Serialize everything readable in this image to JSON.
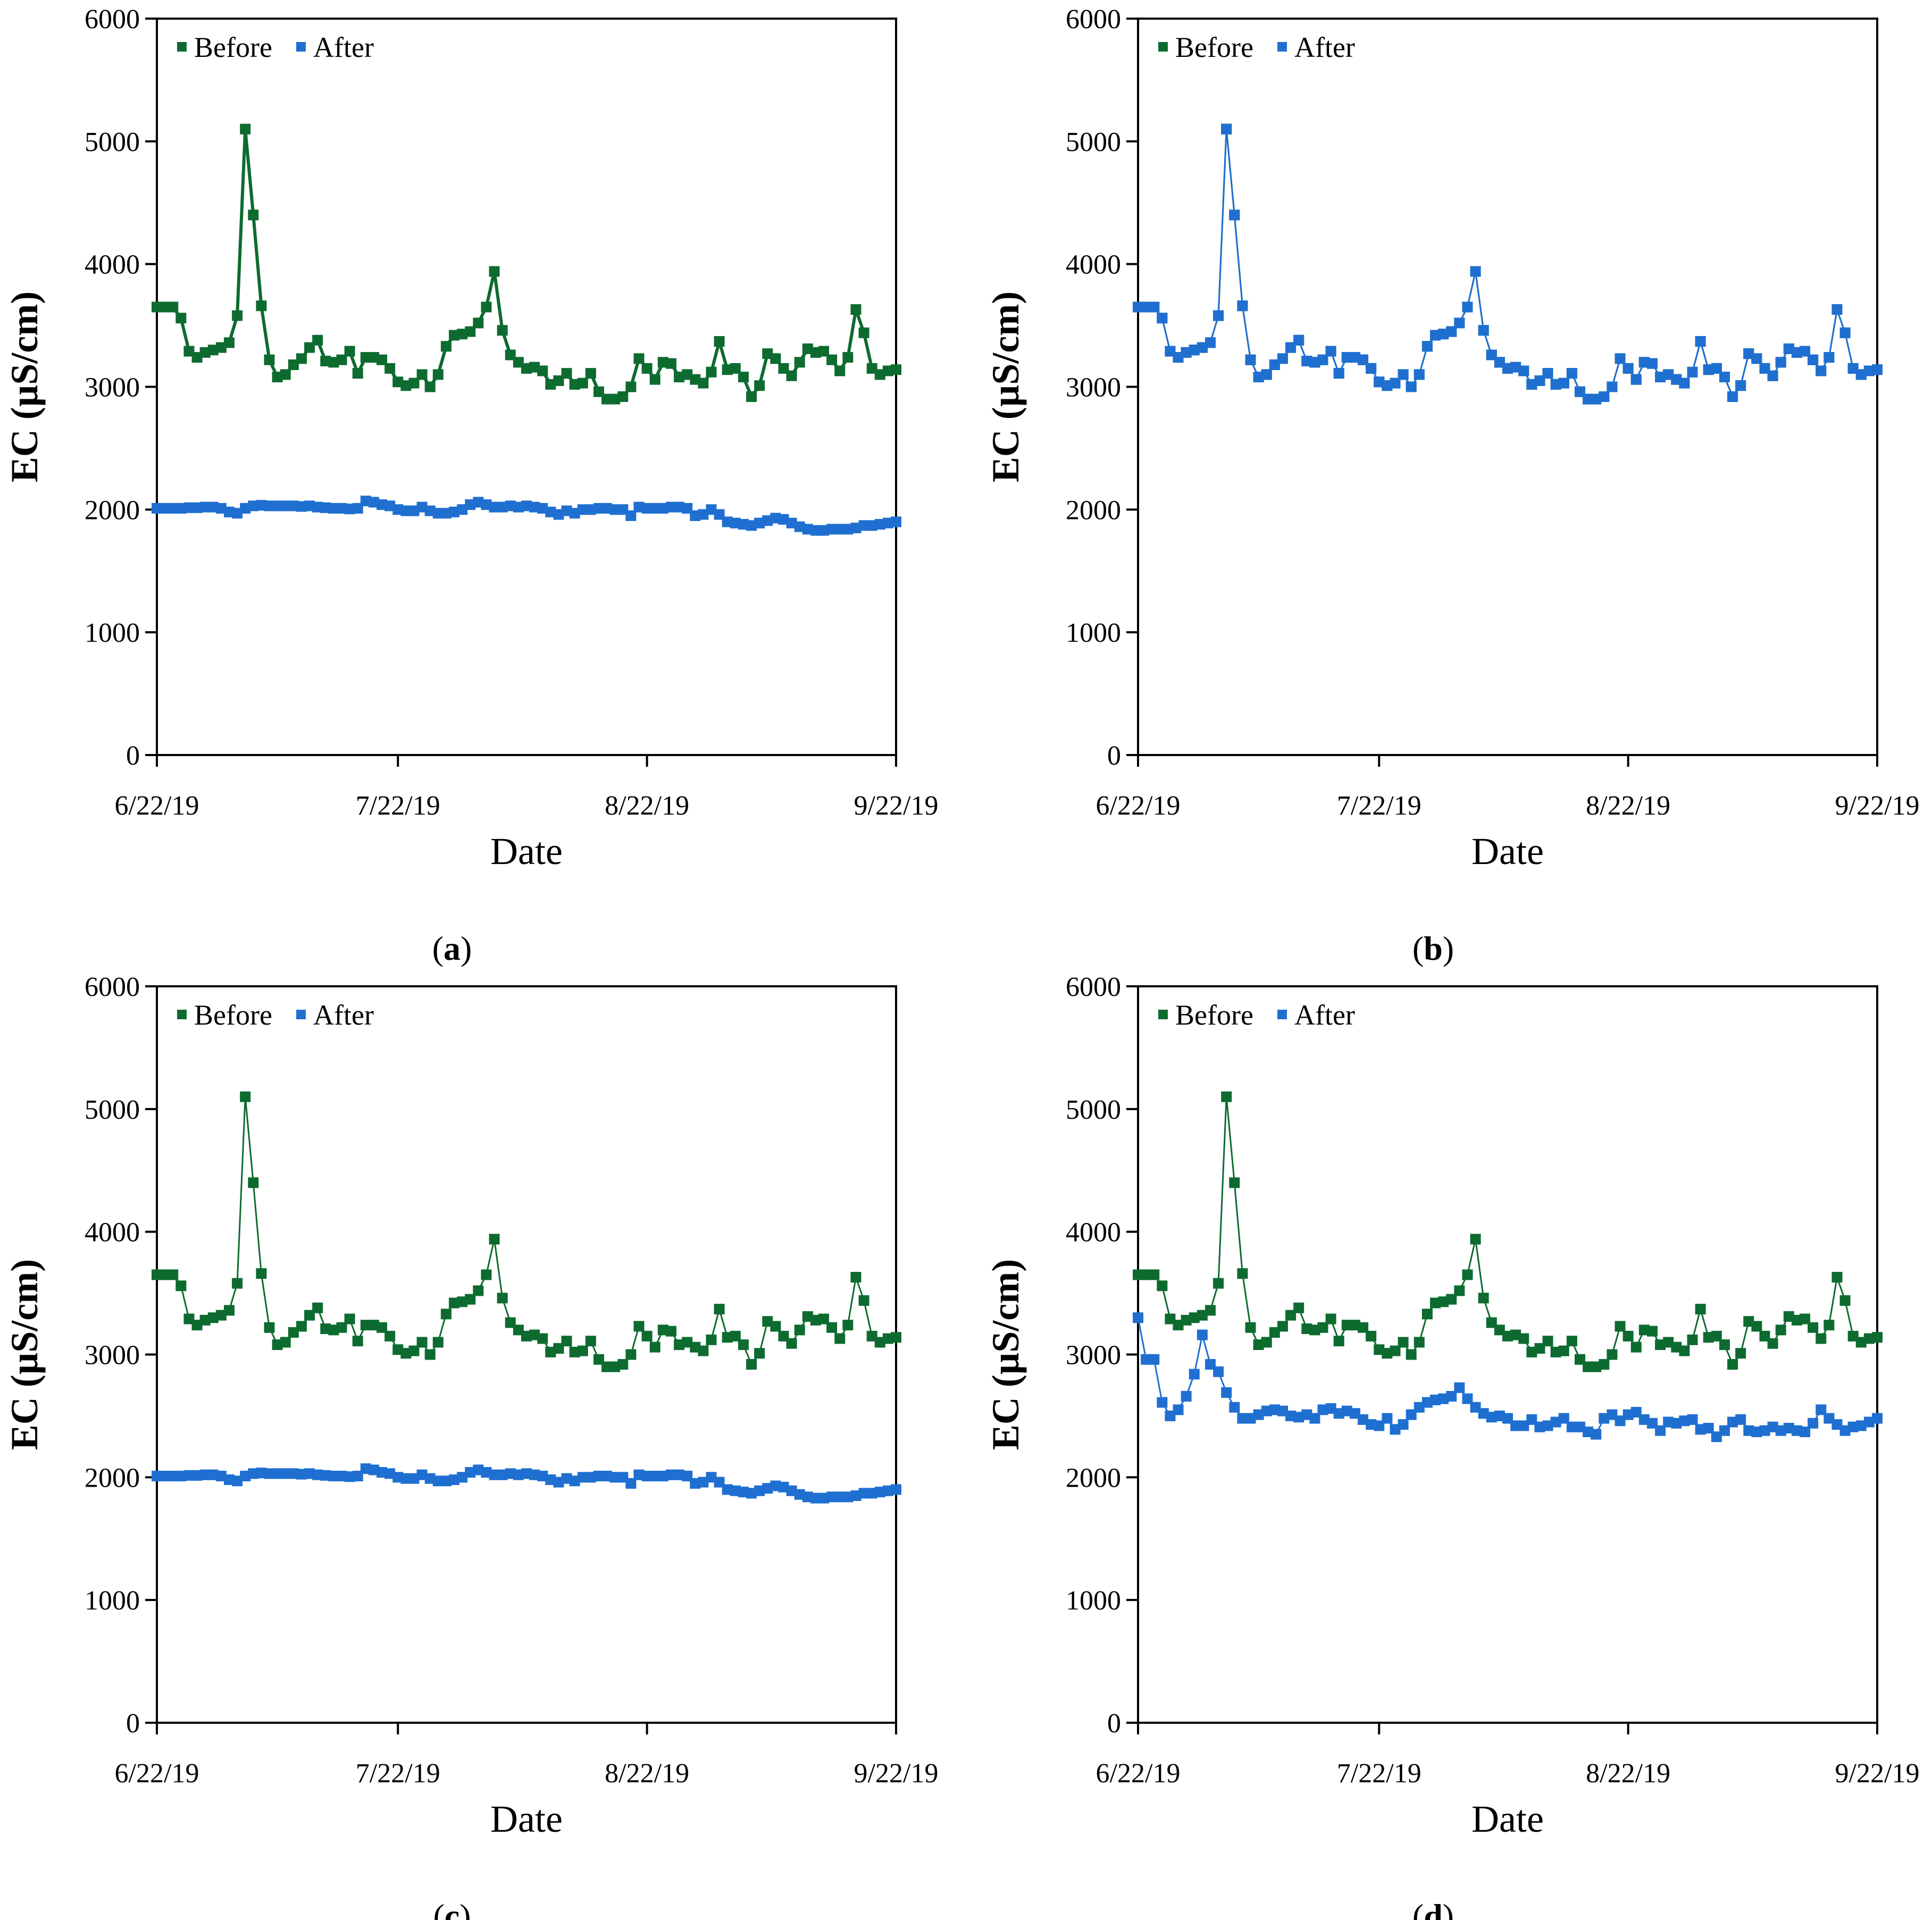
{
  "colors": {
    "before": "#0d6b30",
    "after": "#1f6fd1",
    "axis": "#000000"
  },
  "chart_data": [
    {
      "type": "line",
      "panel_label": "a",
      "title": "",
      "xlabel": "Date",
      "ylabel": "EC (µS/cm)",
      "ylim": [
        0,
        6000
      ],
      "yticks": [
        0,
        1000,
        2000,
        3000,
        4000,
        5000,
        6000
      ],
      "x_range_days": [
        0,
        92
      ],
      "xticks": [
        {
          "day": 0,
          "label": "6/22/19"
        },
        {
          "day": 30,
          "label": "7/22/19"
        },
        {
          "day": 61,
          "label": "8/22/19"
        },
        {
          "day": 92,
          "label": "9/22/19"
        }
      ],
      "legend_position": "top-left",
      "series": [
        {
          "name": "Before",
          "color_key": "before",
          "stroke_width": 6,
          "values": [
            3650,
            3650,
            3650,
            3560,
            3290,
            3240,
            3280,
            3300,
            3320,
            3360,
            3580,
            5100,
            4400,
            3660,
            3220,
            3080,
            3100,
            3180,
            3230,
            3320,
            3380,
            3210,
            3200,
            3220,
            3290,
            3110,
            3240,
            3240,
            3220,
            3150,
            3040,
            3010,
            3030,
            3100,
            3000,
            3100,
            3330,
            3420,
            3430,
            3450,
            3520,
            3650,
            3940,
            3460,
            3260,
            3200,
            3150,
            3160,
            3130,
            3020,
            3050,
            3110,
            3020,
            3030,
            3110,
            2960,
            2900,
            2900,
            2920,
            3000,
            3230,
            3150,
            3060,
            3200,
            3190,
            3080,
            3100,
            3060,
            3030,
            3120,
            3370,
            3140,
            3150,
            3080,
            2920,
            3010,
            3270,
            3230,
            3150,
            3090,
            3200,
            3310,
            3280,
            3290,
            3220,
            3130,
            3240,
            3630,
            3440,
            3150,
            3100,
            3130,
            3140
          ]
        },
        {
          "name": "After",
          "color_key": "after",
          "stroke_width": 6,
          "values": [
            2010,
            2010,
            2010,
            2010,
            2015,
            2015,
            2020,
            2020,
            2010,
            1980,
            1970,
            2010,
            2030,
            2035,
            2030,
            2030,
            2030,
            2030,
            2025,
            2030,
            2020,
            2015,
            2010,
            2010,
            2005,
            2010,
            2070,
            2060,
            2040,
            2030,
            2000,
            1990,
            1990,
            2020,
            1990,
            1970,
            1970,
            1980,
            2000,
            2040,
            2060,
            2040,
            2020,
            2020,
            2030,
            2020,
            2030,
            2020,
            2010,
            1980,
            1960,
            1990,
            1970,
            2000,
            2000,
            2010,
            2010,
            2000,
            2000,
            1950,
            2020,
            2010,
            2010,
            2010,
            2020,
            2020,
            2010,
            1950,
            1960,
            2000,
            1960,
            1900,
            1890,
            1880,
            1870,
            1890,
            1910,
            1930,
            1920,
            1890,
            1860,
            1840,
            1830,
            1830,
            1840,
            1840,
            1840,
            1850,
            1870,
            1870,
            1880,
            1890,
            1900
          ]
        }
      ]
    },
    {
      "type": "line",
      "panel_label": "b",
      "title": "",
      "xlabel": "Date",
      "ylabel": "EC (µS/cm)",
      "ylim": [
        0,
        6000
      ],
      "yticks": [
        0,
        1000,
        2000,
        3000,
        4000,
        5000,
        6000
      ],
      "x_range_days": [
        0,
        92
      ],
      "xticks": [
        {
          "day": 0,
          "label": "6/22/19"
        },
        {
          "day": 30,
          "label": "7/22/19"
        },
        {
          "day": 61,
          "label": "8/22/19"
        },
        {
          "day": 92,
          "label": "9/22/19"
        }
      ],
      "legend_position": "top-left",
      "series": [
        {
          "name": "Before",
          "color_key": "before",
          "stroke_width": 3,
          "values": [
            3650,
            3650,
            3650,
            3560,
            3290,
            3240,
            3280,
            3300,
            3320,
            3360,
            3580,
            5100,
            4400,
            3660,
            3220,
            3080,
            3100,
            3180,
            3230,
            3320,
            3380,
            3210,
            3200,
            3220,
            3290,
            3110,
            3240,
            3240,
            3220,
            3150,
            3040,
            3010,
            3030,
            3100,
            3000,
            3100,
            3330,
            3420,
            3430,
            3450,
            3520,
            3650,
            3940,
            3460,
            3260,
            3200,
            3150,
            3160,
            3130,
            3020,
            3050,
            3110,
            3020,
            3030,
            3110,
            2960,
            2900,
            2900,
            2920,
            3000,
            3230,
            3150,
            3060,
            3200,
            3190,
            3080,
            3100,
            3060,
            3030,
            3120,
            3370,
            3140,
            3150,
            3080,
            2920,
            3010,
            3270,
            3230,
            3150,
            3090,
            3200,
            3310,
            3280,
            3290,
            3220,
            3130,
            3240,
            3630,
            3440,
            3150,
            3100,
            3130,
            3140
          ]
        },
        {
          "name": "After",
          "color_key": "after",
          "stroke_width": 3,
          "values": [
            3650,
            3650,
            3650,
            3560,
            3290,
            3240,
            3280,
            3300,
            3320,
            3360,
            3580,
            5100,
            4400,
            3660,
            3220,
            3080,
            3100,
            3180,
            3230,
            3320,
            3380,
            3210,
            3200,
            3220,
            3290,
            3110,
            3240,
            3240,
            3220,
            3150,
            3040,
            3010,
            3030,
            3100,
            3000,
            3100,
            3330,
            3420,
            3430,
            3450,
            3520,
            3650,
            3940,
            3460,
            3260,
            3200,
            3150,
            3160,
            3130,
            3020,
            3050,
            3110,
            3020,
            3030,
            3110,
            2960,
            2900,
            2900,
            2920,
            3000,
            3230,
            3150,
            3060,
            3200,
            3190,
            3080,
            3100,
            3060,
            3030,
            3120,
            3370,
            3140,
            3150,
            3080,
            2920,
            3010,
            3270,
            3230,
            3150,
            3090,
            3200,
            3310,
            3280,
            3290,
            3220,
            3130,
            3240,
            3630,
            3440,
            3150,
            3100,
            3130,
            3140
          ]
        }
      ]
    },
    {
      "type": "line",
      "panel_label": "c",
      "title": "",
      "xlabel": "Date",
      "ylabel": "EC (µS/cm)",
      "ylim": [
        0,
        6000
      ],
      "yticks": [
        0,
        1000,
        2000,
        3000,
        4000,
        5000,
        6000
      ],
      "x_range_days": [
        0,
        92
      ],
      "xticks": [
        {
          "day": 0,
          "label": "6/22/19"
        },
        {
          "day": 30,
          "label": "7/22/19"
        },
        {
          "day": 61,
          "label": "8/22/19"
        },
        {
          "day": 92,
          "label": "9/22/19"
        }
      ],
      "legend_position": "top-left",
      "series": [
        {
          "name": "Before",
          "color_key": "before",
          "stroke_width": 3,
          "values": [
            3650,
            3650,
            3650,
            3560,
            3290,
            3240,
            3280,
            3300,
            3320,
            3360,
            3580,
            5100,
            4400,
            3660,
            3220,
            3080,
            3100,
            3180,
            3230,
            3320,
            3380,
            3210,
            3200,
            3220,
            3290,
            3110,
            3240,
            3240,
            3220,
            3150,
            3040,
            3010,
            3030,
            3100,
            3000,
            3100,
            3330,
            3420,
            3430,
            3450,
            3520,
            3650,
            3940,
            3460,
            3260,
            3200,
            3150,
            3160,
            3130,
            3020,
            3050,
            3110,
            3020,
            3030,
            3110,
            2960,
            2900,
            2900,
            2920,
            3000,
            3230,
            3150,
            3060,
            3200,
            3190,
            3080,
            3100,
            3060,
            3030,
            3120,
            3370,
            3140,
            3150,
            3080,
            2920,
            3010,
            3270,
            3230,
            3150,
            3090,
            3200,
            3310,
            3280,
            3290,
            3220,
            3130,
            3240,
            3630,
            3440,
            3150,
            3100,
            3130,
            3140
          ]
        },
        {
          "name": "After",
          "color_key": "after",
          "stroke_width": 3,
          "values": [
            2010,
            2010,
            2010,
            2010,
            2015,
            2015,
            2020,
            2020,
            2010,
            1980,
            1970,
            2010,
            2030,
            2035,
            2030,
            2030,
            2030,
            2030,
            2025,
            2030,
            2020,
            2015,
            2010,
            2010,
            2005,
            2010,
            2070,
            2060,
            2040,
            2030,
            2000,
            1990,
            1990,
            2020,
            1990,
            1970,
            1970,
            1980,
            2000,
            2040,
            2060,
            2040,
            2020,
            2020,
            2030,
            2020,
            2030,
            2020,
            2010,
            1980,
            1960,
            1990,
            1970,
            2000,
            2000,
            2010,
            2010,
            2000,
            2000,
            1950,
            2020,
            2010,
            2010,
            2010,
            2020,
            2020,
            2010,
            1950,
            1960,
            2000,
            1960,
            1900,
            1890,
            1880,
            1870,
            1890,
            1910,
            1930,
            1920,
            1890,
            1860,
            1840,
            1830,
            1830,
            1840,
            1840,
            1840,
            1850,
            1870,
            1870,
            1880,
            1890,
            1900
          ]
        }
      ]
    },
    {
      "type": "line",
      "panel_label": "d",
      "title": "",
      "xlabel": "Date",
      "ylabel": "EC (µS/cm)",
      "ylim": [
        0,
        6000
      ],
      "yticks": [
        0,
        1000,
        2000,
        3000,
        4000,
        5000,
        6000
      ],
      "x_range_days": [
        0,
        92
      ],
      "xticks": [
        {
          "day": 0,
          "label": "6/22/19"
        },
        {
          "day": 30,
          "label": "7/22/19"
        },
        {
          "day": 61,
          "label": "8/22/19"
        },
        {
          "day": 92,
          "label": "9/22/19"
        }
      ],
      "legend_position": "top-left",
      "series": [
        {
          "name": "Before",
          "color_key": "before",
          "stroke_width": 3,
          "values": [
            3650,
            3650,
            3650,
            3560,
            3290,
            3240,
            3280,
            3300,
            3320,
            3360,
            3580,
            5100,
            4400,
            3660,
            3220,
            3080,
            3100,
            3180,
            3230,
            3320,
            3380,
            3210,
            3200,
            3220,
            3290,
            3110,
            3240,
            3240,
            3220,
            3150,
            3040,
            3010,
            3030,
            3100,
            3000,
            3100,
            3330,
            3420,
            3430,
            3450,
            3520,
            3650,
            3940,
            3460,
            3260,
            3200,
            3150,
            3160,
            3130,
            3020,
            3050,
            3110,
            3020,
            3030,
            3110,
            2960,
            2900,
            2900,
            2920,
            3000,
            3230,
            3150,
            3060,
            3200,
            3190,
            3080,
            3100,
            3060,
            3030,
            3120,
            3370,
            3140,
            3150,
            3080,
            2920,
            3010,
            3270,
            3230,
            3150,
            3090,
            3200,
            3310,
            3280,
            3290,
            3220,
            3130,
            3240,
            3630,
            3440,
            3150,
            3100,
            3130,
            3140
          ]
        },
        {
          "name": "After",
          "color_key": "after",
          "stroke_width": 3,
          "values": [
            3300,
            2960,
            2960,
            2610,
            2500,
            2550,
            2660,
            2840,
            3160,
            2920,
            2860,
            2690,
            2570,
            2480,
            2480,
            2510,
            2540,
            2550,
            2540,
            2500,
            2490,
            2510,
            2480,
            2550,
            2560,
            2520,
            2540,
            2520,
            2470,
            2430,
            2420,
            2480,
            2390,
            2430,
            2510,
            2570,
            2610,
            2630,
            2640,
            2660,
            2730,
            2640,
            2570,
            2520,
            2490,
            2500,
            2480,
            2420,
            2420,
            2470,
            2410,
            2420,
            2450,
            2480,
            2410,
            2410,
            2370,
            2350,
            2480,
            2510,
            2460,
            2510,
            2530,
            2470,
            2440,
            2380,
            2450,
            2440,
            2460,
            2470,
            2390,
            2400,
            2330,
            2380,
            2450,
            2470,
            2380,
            2370,
            2380,
            2410,
            2380,
            2400,
            2380,
            2370,
            2440,
            2550,
            2480,
            2430,
            2380,
            2410,
            2420,
            2450,
            2480
          ]
        }
      ]
    }
  ]
}
